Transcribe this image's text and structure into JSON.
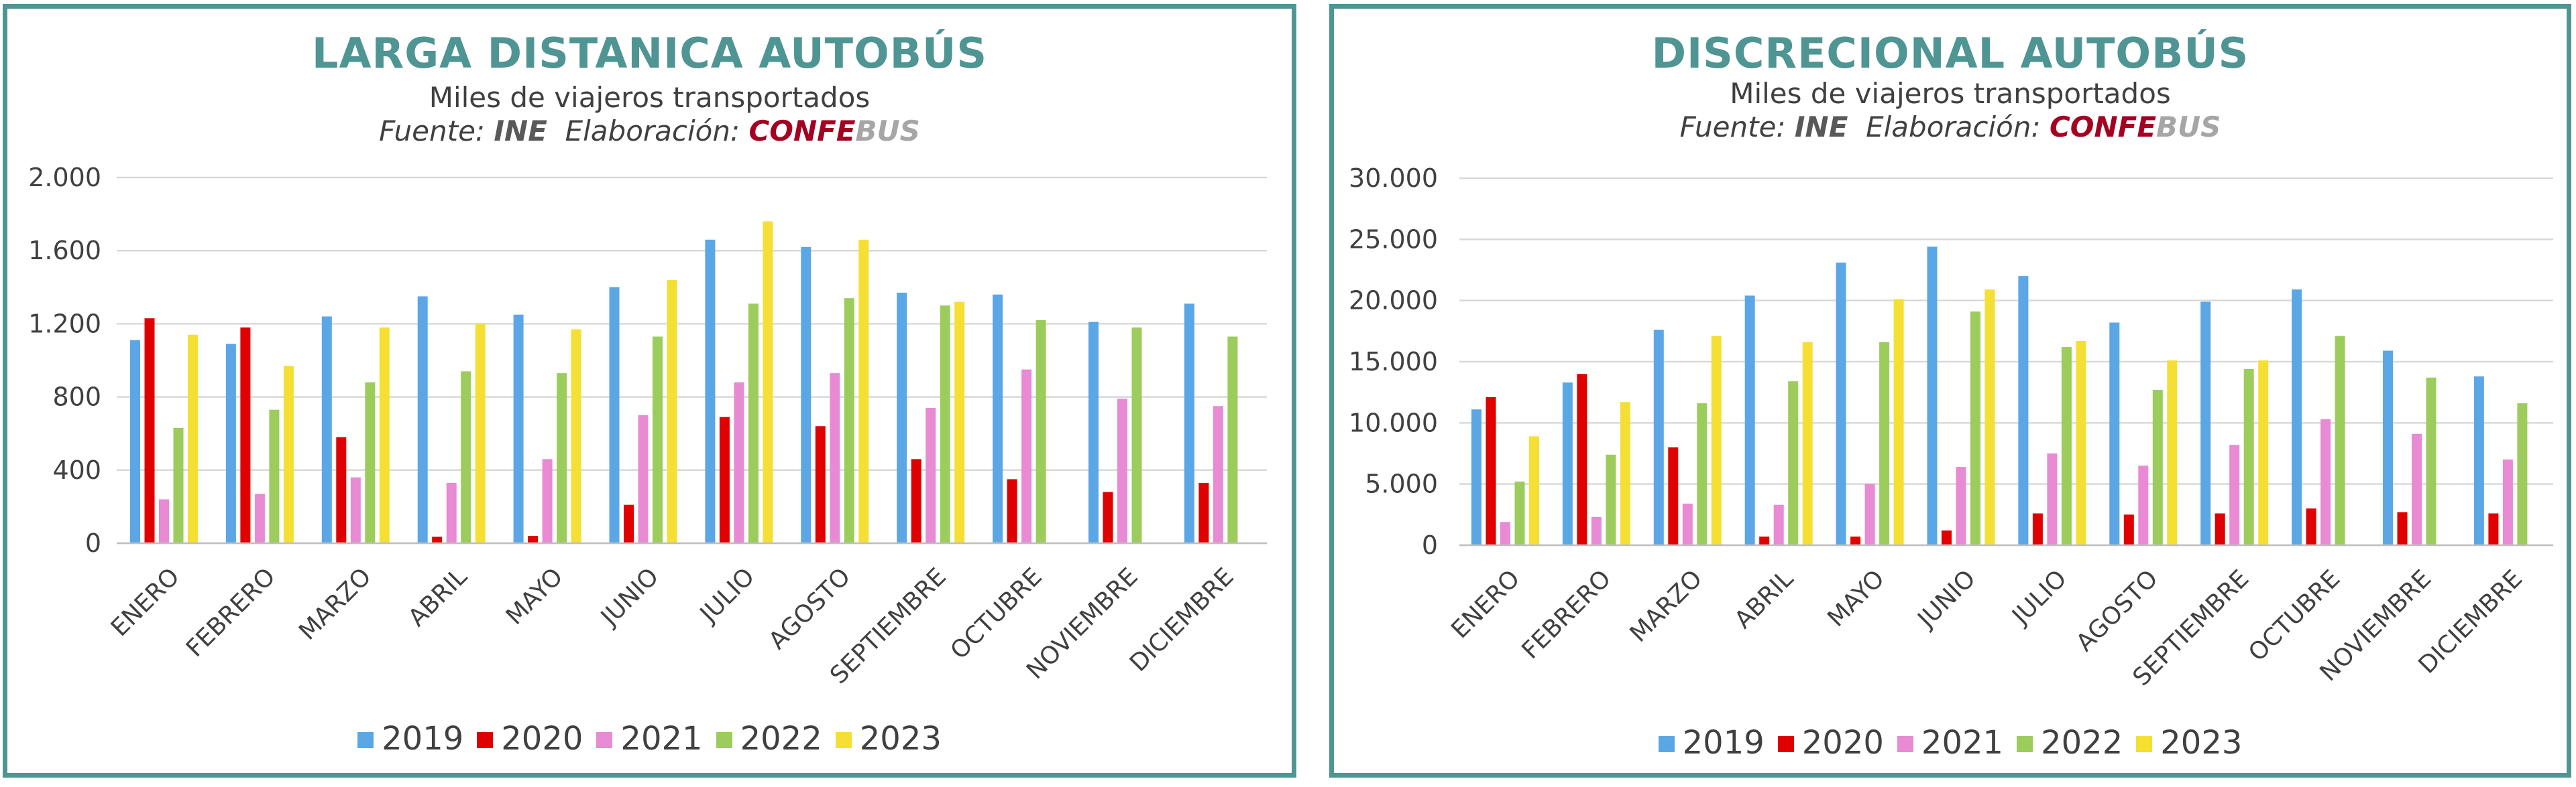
{
  "colors": {
    "2019": "#5ba7e6",
    "2020": "#e00000",
    "2021": "#e88ad4",
    "2022": "#9ccc5c",
    "2023": "#f6df33"
  },
  "chart_data": [
    {
      "type": "bar",
      "title": "LARGA DISTANICA AUTOBÚS",
      "subtitle": "Miles de viajeros transportados",
      "source": {
        "fuente_label": "Fuente:",
        "fuente_value": "INE",
        "elab_label": "Elaboración:",
        "elab_value_a": "CONFE",
        "elab_value_b": "BUS"
      },
      "categories": [
        "ENERO",
        "FEBRERO",
        "MARZO",
        "ABRIL",
        "MAYO",
        "JUNIO",
        "JULIO",
        "AGOSTO",
        "SEPTIEMBRE",
        "OCTUBRE",
        "NOVIEMBRE",
        "DICIEMBRE"
      ],
      "series": [
        {
          "name": "2019",
          "values": [
            1110,
            1090,
            1240,
            1350,
            1250,
            1400,
            1660,
            1620,
            1370,
            1360,
            1210,
            1310
          ]
        },
        {
          "name": "2020",
          "values": [
            1230,
            1180,
            580,
            35,
            40,
            210,
            690,
            640,
            460,
            350,
            280,
            330
          ]
        },
        {
          "name": "2021",
          "values": [
            240,
            270,
            360,
            330,
            460,
            700,
            880,
            930,
            740,
            950,
            790,
            750
          ]
        },
        {
          "name": "2022",
          "values": [
            630,
            730,
            880,
            940,
            930,
            1130,
            1310,
            1340,
            1300,
            1220,
            1180,
            1130
          ]
        },
        {
          "name": "2023",
          "values": [
            1140,
            970,
            1180,
            1200,
            1170,
            1440,
            1760,
            1660,
            1320,
            null,
            null,
            null
          ]
        }
      ],
      "ylim": [
        0,
        2000
      ],
      "yticks": [
        0,
        400,
        800,
        1200,
        1600,
        2000
      ],
      "ytick_labels": [
        "0",
        "400",
        "800",
        "1.200",
        "1.600",
        "2.000"
      ],
      "legend_position": "bottom"
    },
    {
      "type": "bar",
      "title": "DISCRECIONAL AUTOBÚS",
      "subtitle": "Miles de viajeros transportados",
      "source": {
        "fuente_label": "Fuente:",
        "fuente_value": "INE",
        "elab_label": "Elaboración:",
        "elab_value_a": "CONFE",
        "elab_value_b": "BUS"
      },
      "categories": [
        "ENERO",
        "FEBRERO",
        "MARZO",
        "ABRIL",
        "MAYO",
        "JUNIO",
        "JULIO",
        "AGOSTO",
        "SEPTIEMBRE",
        "OCTUBRE",
        "NOVIEMBRE",
        "DICIEMBRE"
      ],
      "series": [
        {
          "name": "2019",
          "values": [
            11100,
            13300,
            17600,
            20400,
            23100,
            24400,
            22000,
            18200,
            19900,
            20900,
            15900,
            13800
          ]
        },
        {
          "name": "2020",
          "values": [
            12100,
            14000,
            8000,
            700,
            700,
            1200,
            2600,
            2500,
            2600,
            3000,
            2700,
            2600
          ]
        },
        {
          "name": "2021",
          "values": [
            1900,
            2300,
            3400,
            3300,
            5000,
            6400,
            7500,
            6500,
            8200,
            10300,
            9100,
            7000
          ]
        },
        {
          "name": "2022",
          "values": [
            5200,
            7400,
            11600,
            13400,
            16600,
            19100,
            16200,
            12700,
            14400,
            17100,
            13700,
            11600
          ]
        },
        {
          "name": "2023",
          "values": [
            8900,
            11700,
            17100,
            16600,
            20100,
            20900,
            16700,
            15100,
            15100,
            null,
            null,
            null
          ]
        }
      ],
      "ylim": [
        0,
        30000
      ],
      "yticks": [
        0,
        5000,
        10000,
        15000,
        20000,
        25000,
        30000
      ],
      "ytick_labels": [
        "0",
        "5.000",
        "10.000",
        "15.000",
        "20.000",
        "25.000",
        "30.000"
      ],
      "legend_position": "bottom"
    }
  ]
}
